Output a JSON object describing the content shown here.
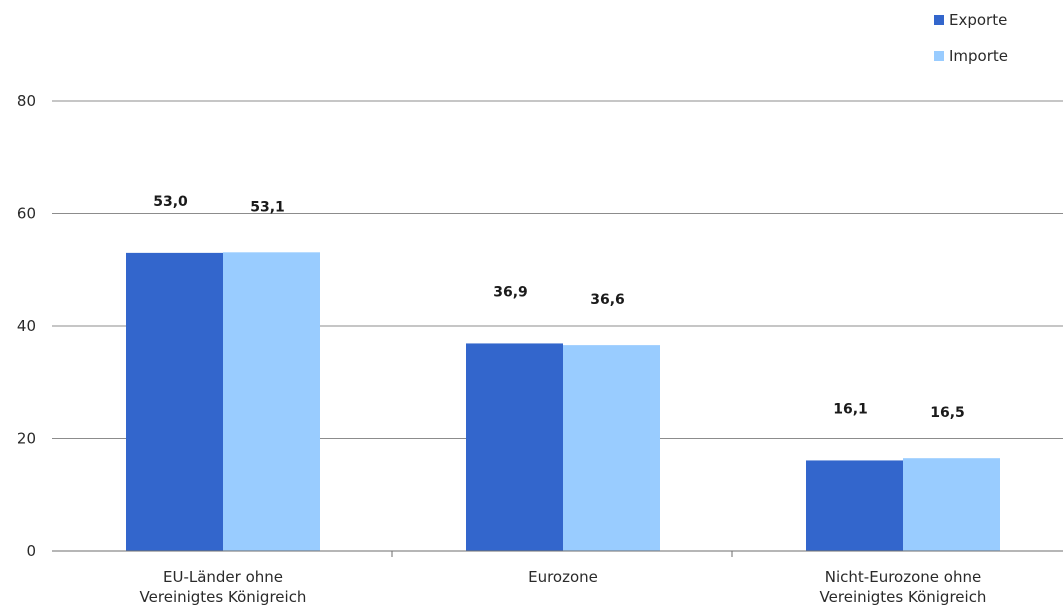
{
  "chart_data": {
    "type": "bar",
    "categories": [
      [
        "EU-Länder ohne",
        "Vereinigtes Königreich"
      ],
      [
        "Eurozone"
      ],
      [
        "Nicht-Eurozone ohne",
        "Vereinigtes Königreich"
      ]
    ],
    "series": [
      {
        "name": "Exporte",
        "color": "#3366cc",
        "values": [
          53.0,
          36.9,
          16.1
        ],
        "labels": [
          "53,0",
          "36,9",
          "16,1"
        ]
      },
      {
        "name": "Importe",
        "color": "#99ccff",
        "values": [
          53.1,
          36.6,
          16.5
        ],
        "labels": [
          "53,1",
          "36,6",
          "16,5"
        ]
      }
    ],
    "ylim": [
      0,
      80
    ],
    "yticks": [
      0,
      20,
      40,
      60,
      80
    ],
    "grid": true,
    "legend_position": "top-right"
  }
}
